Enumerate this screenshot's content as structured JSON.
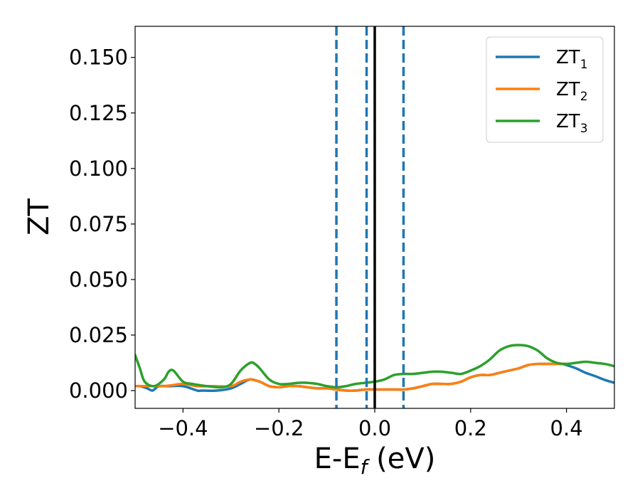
{
  "chart_data": {
    "type": "line",
    "xlabel": "E-E",
    "xlabel_sub": "f",
    "xlabel_unit": " (eV)",
    "ylabel": "ZT",
    "xlim": [
      -0.5,
      0.5
    ],
    "ylim": [
      -0.008,
      0.164
    ],
    "xticks": [
      -0.4,
      -0.2,
      0.0,
      0.2,
      0.4
    ],
    "xtick_labels": [
      "−0.4",
      "−0.2",
      "0.0",
      "0.2",
      "0.4"
    ],
    "yticks": [
      0.0,
      0.025,
      0.05,
      0.075,
      0.1,
      0.125,
      0.15
    ],
    "ytick_labels": [
      "0.000",
      "0.025",
      "0.050",
      "0.075",
      "0.100",
      "0.125",
      "0.150"
    ],
    "grid": false,
    "legend_position": "top-right",
    "series": [
      {
        "name": "ZT",
        "name_sub": "1",
        "color": "#1f77b4",
        "x": [
          -0.5,
          -0.49,
          -0.475,
          -0.465,
          -0.46,
          -0.45,
          -0.43,
          -0.4,
          -0.37,
          -0.36,
          -0.33,
          -0.3,
          -0.28,
          -0.26,
          -0.24,
          -0.22,
          -0.2,
          -0.18,
          -0.16,
          -0.14,
          -0.12,
          -0.1,
          -0.08,
          -0.06,
          -0.04,
          -0.02,
          0.0,
          0.02,
          0.04,
          0.06,
          0.08,
          0.1,
          0.12,
          0.14,
          0.16,
          0.18,
          0.2,
          0.22,
          0.24,
          0.26,
          0.28,
          0.3,
          0.32,
          0.34,
          0.36,
          0.38,
          0.39,
          0.4,
          0.42,
          0.44,
          0.46,
          0.48,
          0.5
        ],
        "y": [
          0.002,
          0.002,
          0.001,
          0.0,
          0.0005,
          0.002,
          0.002,
          0.002,
          0.0,
          0.0,
          0.0,
          0.001,
          0.003,
          0.005,
          0.004,
          0.002,
          0.0015,
          0.002,
          0.002,
          0.0015,
          0.001,
          0.001,
          0.0005,
          0.0,
          0.0,
          0.0005,
          0.0005,
          0.0005,
          0.0005,
          0.0005,
          0.001,
          0.002,
          0.003,
          0.003,
          0.003,
          0.004,
          0.006,
          0.007,
          0.007,
          0.008,
          0.009,
          0.01,
          0.0115,
          0.012,
          0.012,
          0.012,
          0.012,
          0.0115,
          0.01,
          0.008,
          0.0065,
          0.0048,
          0.0035
        ]
      },
      {
        "name": "ZT",
        "name_sub": "2",
        "color": "#ff7f0e",
        "x": [
          -0.5,
          -0.48,
          -0.46,
          -0.44,
          -0.42,
          -0.4,
          -0.37,
          -0.34,
          -0.3,
          -0.28,
          -0.26,
          -0.24,
          -0.22,
          -0.2,
          -0.18,
          -0.16,
          -0.14,
          -0.12,
          -0.1,
          -0.08,
          -0.06,
          -0.04,
          -0.02,
          0.0,
          0.02,
          0.04,
          0.06,
          0.08,
          0.1,
          0.12,
          0.14,
          0.16,
          0.18,
          0.2,
          0.22,
          0.24,
          0.26,
          0.28,
          0.3,
          0.32,
          0.34,
          0.36,
          0.38,
          0.4
        ],
        "y": [
          0.002,
          0.002,
          0.002,
          0.002,
          0.0025,
          0.003,
          0.002,
          0.002,
          0.002,
          0.004,
          0.005,
          0.004,
          0.002,
          0.0015,
          0.002,
          0.002,
          0.0015,
          0.001,
          0.001,
          0.0005,
          0.0,
          0.0,
          0.0005,
          0.0005,
          0.0005,
          0.0005,
          0.0005,
          0.001,
          0.002,
          0.003,
          0.003,
          0.003,
          0.004,
          0.006,
          0.007,
          0.007,
          0.008,
          0.009,
          0.01,
          0.0115,
          0.012,
          0.012,
          0.012,
          0.012
        ]
      },
      {
        "name": "ZT",
        "name_sub": "3",
        "color": "#2ca02c",
        "x": [
          -0.5,
          -0.49,
          -0.48,
          -0.46,
          -0.44,
          -0.43,
          -0.42,
          -0.4,
          -0.38,
          -0.35,
          -0.32,
          -0.3,
          -0.28,
          -0.26,
          -0.25,
          -0.24,
          -0.22,
          -0.2,
          -0.18,
          -0.16,
          -0.14,
          -0.12,
          -0.1,
          -0.08,
          -0.06,
          -0.04,
          -0.02,
          0.0,
          0.02,
          0.04,
          0.06,
          0.08,
          0.1,
          0.12,
          0.14,
          0.16,
          0.18,
          0.2,
          0.22,
          0.24,
          0.26,
          0.28,
          0.3,
          0.32,
          0.34,
          0.36,
          0.38,
          0.4,
          0.42,
          0.44,
          0.46,
          0.48,
          0.5
        ],
        "y": [
          0.016,
          0.01,
          0.004,
          0.002,
          0.005,
          0.0085,
          0.009,
          0.004,
          0.003,
          0.002,
          0.0015,
          0.003,
          0.009,
          0.0125,
          0.012,
          0.01,
          0.005,
          0.003,
          0.003,
          0.0035,
          0.0035,
          0.003,
          0.002,
          0.0015,
          0.002,
          0.003,
          0.0035,
          0.004,
          0.005,
          0.007,
          0.0075,
          0.0075,
          0.008,
          0.0085,
          0.0085,
          0.008,
          0.0075,
          0.009,
          0.011,
          0.014,
          0.018,
          0.02,
          0.0205,
          0.02,
          0.018,
          0.0145,
          0.0125,
          0.012,
          0.0125,
          0.013,
          0.0125,
          0.012,
          0.011
        ]
      }
    ],
    "vlines": [
      {
        "x": -0.08,
        "style": "dashed",
        "color": "#1f77b4"
      },
      {
        "x": -0.017,
        "style": "dashed",
        "color": "#1f77b4"
      },
      {
        "x": 0.0,
        "style": "solid",
        "color": "#000000"
      },
      {
        "x": 0.06,
        "style": "dashed",
        "color": "#1f77b4"
      }
    ]
  }
}
